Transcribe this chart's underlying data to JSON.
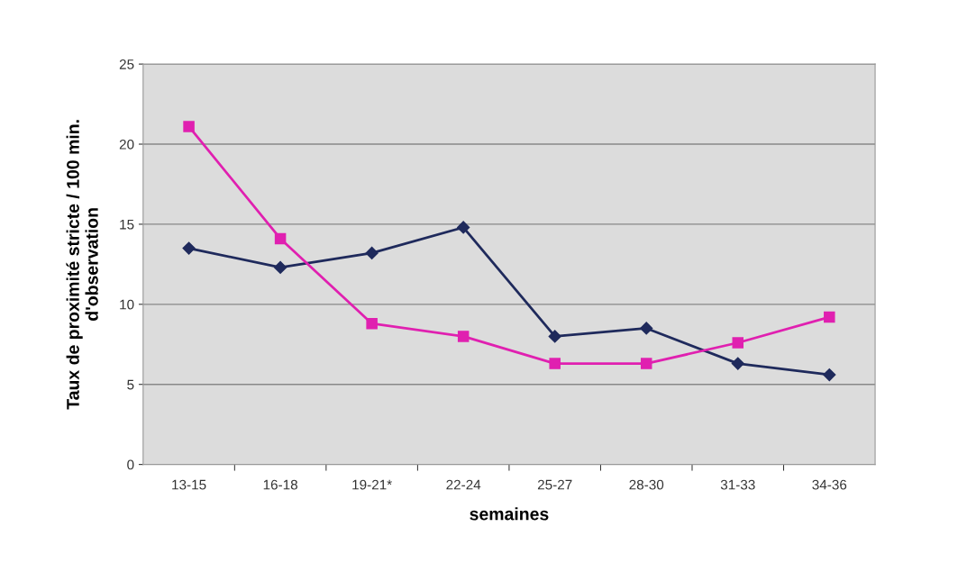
{
  "chart_data": {
    "type": "line",
    "xlabel": "semaines",
    "ylabel": "Taux de proximité stricte / 100 min.\nd'observation",
    "categories": [
      "13-15",
      "16-18",
      "19-21*",
      "22-24",
      "25-27",
      "28-30",
      "31-33",
      "34-36"
    ],
    "series": [
      {
        "color": "#1f2a5c",
        "marker": "diamond",
        "values": [
          13.5,
          12.3,
          13.2,
          14.8,
          8.0,
          8.5,
          6.3,
          5.6
        ]
      },
      {
        "color": "#e020b0",
        "marker": "square",
        "values": [
          21.1,
          14.1,
          8.8,
          8.0,
          6.3,
          6.3,
          7.6,
          9.2
        ]
      }
    ],
    "ylim": [
      0,
      25
    ],
    "yticks": [
      0,
      5,
      10,
      15,
      20,
      25
    ],
    "grid": "y",
    "legend": false,
    "line_style": "solid"
  }
}
